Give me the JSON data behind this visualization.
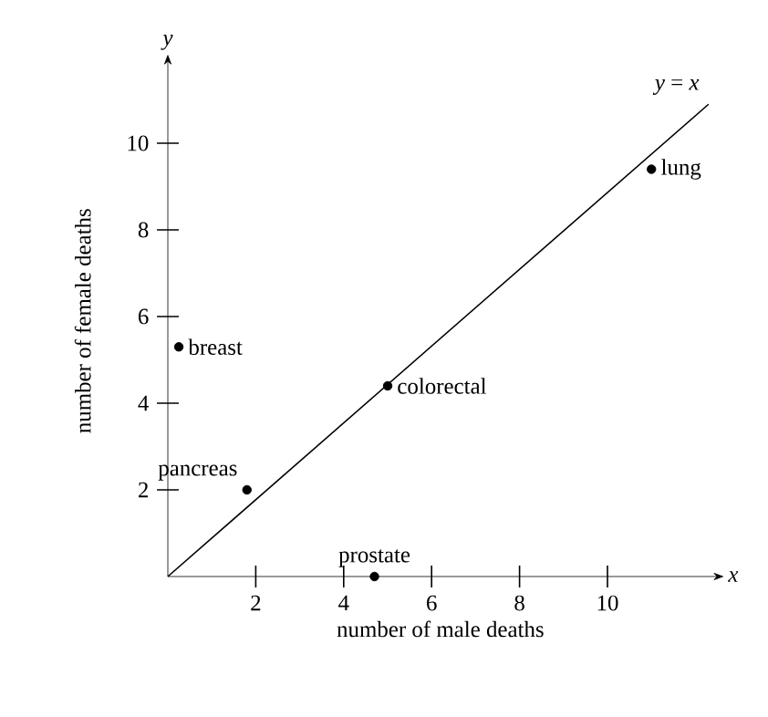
{
  "chart_data": {
    "type": "scatter",
    "xlabel": "number of male deaths",
    "ylabel": "number of female deaths",
    "xlim": [
      0,
      12.4
    ],
    "ylim": [
      0,
      11.8
    ],
    "xticks": [
      2,
      4,
      6,
      8,
      10
    ],
    "yticks": [
      2,
      4,
      6,
      8,
      10
    ],
    "grid": false,
    "marker": "circle",
    "series": [
      {
        "color": "#000000",
        "x": [
          0.25,
          1.8,
          5.0,
          11.0,
          4.7
        ],
        "values": [
          5.3,
          2.0,
          4.4,
          9.4,
          0
        ]
      },
      {
        "type": "line",
        "color": "#000000",
        "marker": "none",
        "x": [
          0,
          12.3
        ],
        "values": [
          0,
          10.9
        ]
      }
    ],
    "annotations": [
      "*x*",
      "*y*",
      {
        "text": "breast",
        "x": 0.25,
        "y": 5.3
      },
      {
        "text": "pancreas",
        "x": 1.8,
        "y": 2.0
      },
      {
        "text": "colorectal",
        "x": 5.0,
        "y": 4.4
      },
      {
        "text": "lung",
        "x": 11.0,
        "y": 9.4
      },
      {
        "text": "prostate",
        "x": 4.7,
        "y": 0
      },
      {
        "text": "*y* = *x*",
        "x": 12.3,
        "y": 10.9
      }
    ]
  }
}
